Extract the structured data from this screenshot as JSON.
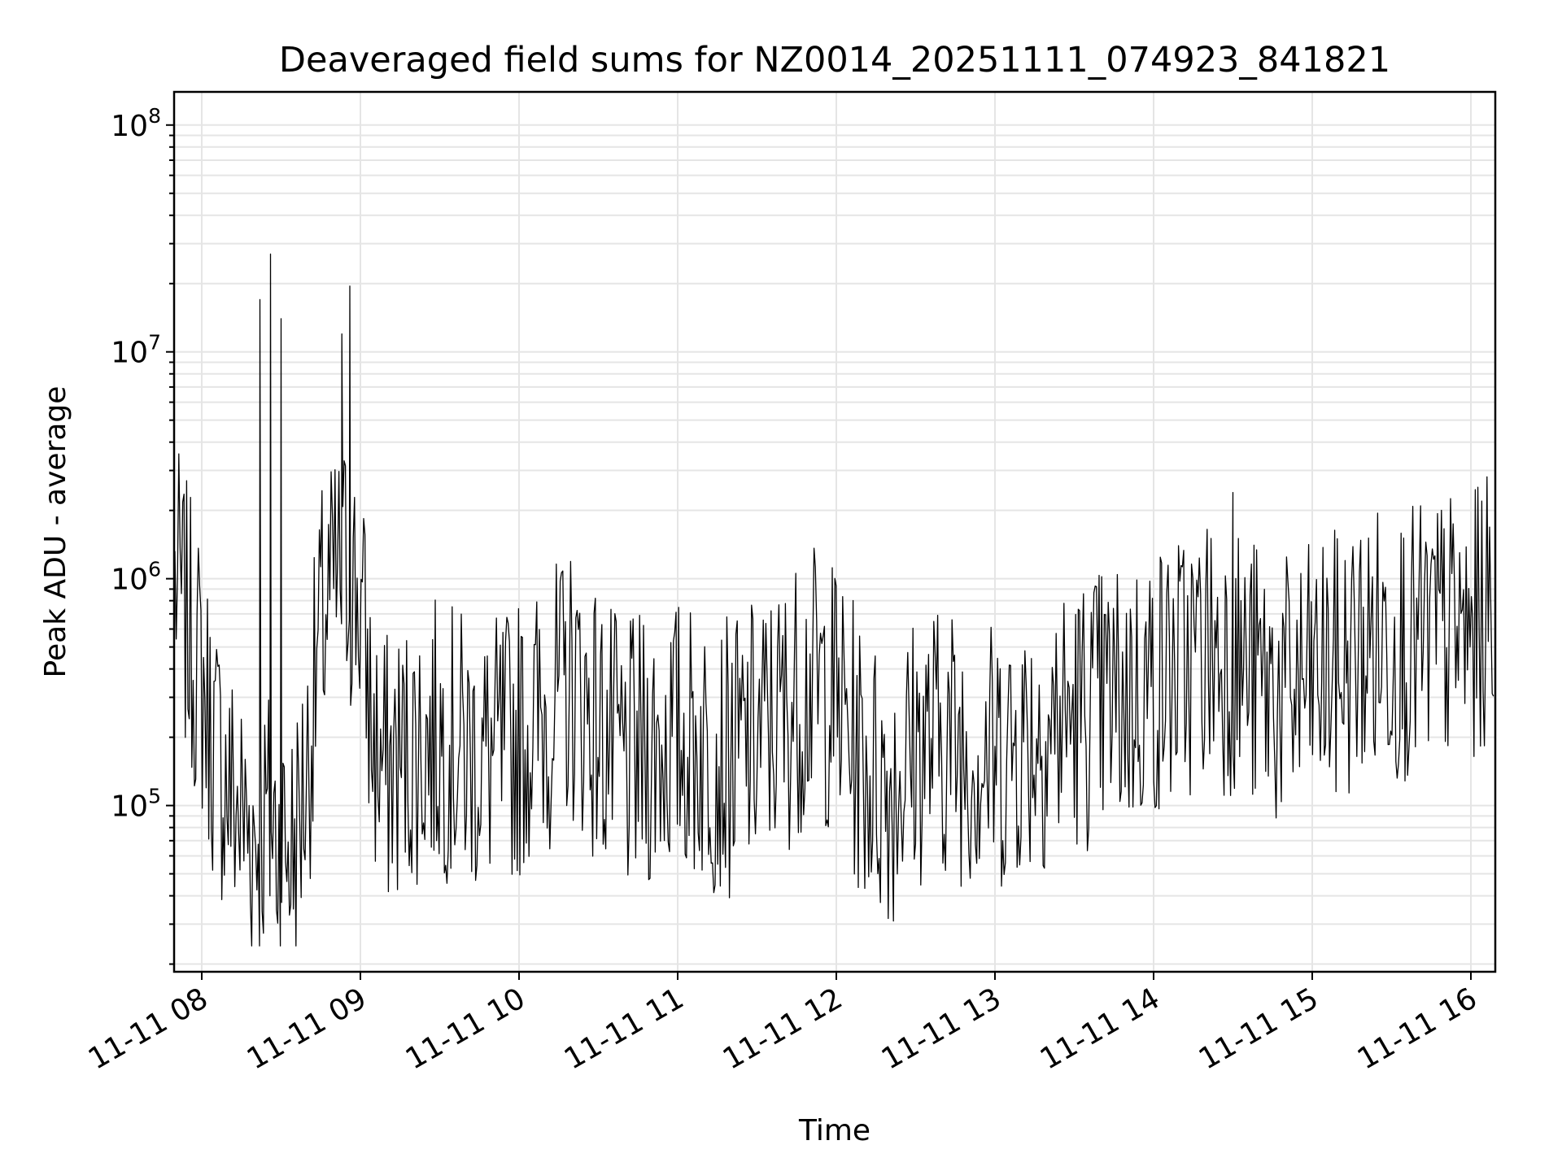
{
  "chart_data": {
    "type": "line",
    "title": "Deaveraged field sums for NZ0014_20251111_074923_841821",
    "xlabel": "Time",
    "ylabel": "Peak ADU - average",
    "yscale": "log",
    "ylim": [
      18500,
      140000000
    ],
    "xlim": [
      "2025-11-11 07:49:23",
      "2025-11-11 16:06:00"
    ],
    "grid": true,
    "x_ticks": [
      "11-11 08",
      "11-11 09",
      "11-11 10",
      "11-11 11",
      "11-11 12",
      "11-11 13",
      "11-11 14",
      "11-11 15",
      "11-11 16"
    ],
    "y_ticks": [
      {
        "base": "10",
        "exp": "5",
        "value": 100000
      },
      {
        "base": "10",
        "exp": "6",
        "value": 1000000
      },
      {
        "base": "10",
        "exp": "7",
        "value": 10000000
      },
      {
        "base": "10",
        "exp": "8",
        "value": 100000000
      }
    ],
    "series": [
      {
        "color": "#000000",
        "x": [
          "2025-11-11 07:50",
          "2025-11-11 07:55",
          "2025-11-11 08:00",
          "2025-11-11 08:05",
          "2025-11-11 08:10",
          "2025-11-11 08:15",
          "2025-11-11 08:20",
          "2025-11-11 08:25",
          "2025-11-11 08:30",
          "2025-11-11 08:35",
          "2025-11-11 08:40",
          "2025-11-11 08:45",
          "2025-11-11 08:50",
          "2025-11-11 08:55",
          "2025-11-11 09:00",
          "2025-11-11 09:05",
          "2025-11-11 09:10",
          "2025-11-11 09:20",
          "2025-11-11 09:30",
          "2025-11-11 09:40",
          "2025-11-11 09:50",
          "2025-11-11 10:00",
          "2025-11-11 10:10",
          "2025-11-11 10:20",
          "2025-11-11 10:30",
          "2025-11-11 10:40",
          "2025-11-11 10:50",
          "2025-11-11 11:00",
          "2025-11-11 11:10",
          "2025-11-11 11:20",
          "2025-11-11 11:30",
          "2025-11-11 11:40",
          "2025-11-11 11:50",
          "2025-11-11 12:00",
          "2025-11-11 12:10",
          "2025-11-11 12:20",
          "2025-11-11 12:30",
          "2025-11-11 12:40",
          "2025-11-11 12:50",
          "2025-11-11 13:00",
          "2025-11-11 13:10",
          "2025-11-11 13:20",
          "2025-11-11 13:30",
          "2025-11-11 13:40",
          "2025-11-11 13:50",
          "2025-11-11 14:00",
          "2025-11-11 14:10",
          "2025-11-11 14:20",
          "2025-11-11 14:30",
          "2025-11-11 14:40",
          "2025-11-11 14:50",
          "2025-11-11 15:00",
          "2025-11-11 15:10",
          "2025-11-11 15:20",
          "2025-11-11 15:30",
          "2025-11-11 15:40",
          "2025-11-11 15:50",
          "2025-11-11 16:00",
          "2025-11-11 16:05"
        ],
        "y": [
          1000000,
          600000,
          350000,
          180000,
          120000,
          90000,
          75000,
          85000,
          70000,
          65000,
          150000,
          600000,
          900000,
          1100000,
          800000,
          180000,
          140000,
          180000,
          200000,
          170000,
          160000,
          200000,
          250000,
          350000,
          220000,
          150000,
          180000,
          200000,
          180000,
          160000,
          200000,
          250000,
          350000,
          300000,
          150000,
          120000,
          180000,
          200000,
          180000,
          160000,
          200000,
          220000,
          250000,
          280000,
          300000,
          350000,
          400000,
          500000,
          450000,
          350000,
          300000,
          350000,
          400000,
          500000,
          550000,
          500000,
          600000,
          550000,
          700000
        ]
      }
    ],
    "spikes": [
      {
        "x": "2025-11-11 08:22",
        "y": 17000000
      },
      {
        "x": "2025-11-11 08:26",
        "y": 27000000
      },
      {
        "x": "2025-11-11 08:30",
        "y": 14000000
      },
      {
        "x": "2025-11-11 08:53",
        "y": 12000000
      },
      {
        "x": "2025-11-11 08:56",
        "y": 19500000
      },
      {
        "x": "2025-11-11 14:30",
        "y": 2400000
      }
    ]
  }
}
